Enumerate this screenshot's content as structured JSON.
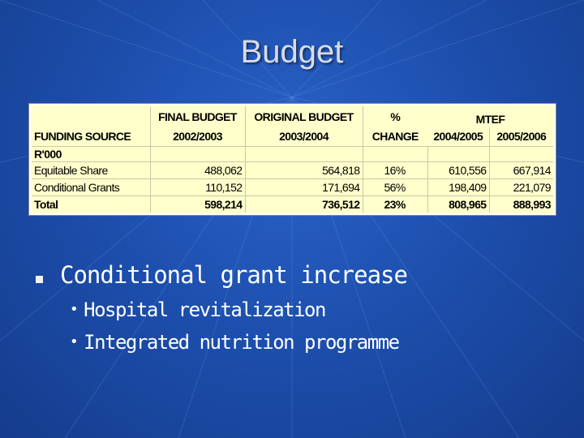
{
  "slide": {
    "title": "Budget",
    "colors": {
      "background": "#1d4fae",
      "table_bg": "#ffffcc",
      "text": "#ffffff"
    }
  },
  "table": {
    "header_row1": {
      "final_budget": "FINAL BUDGET",
      "original_budget": "ORIGINAL BUDGET",
      "percent": "%",
      "mtef": "MTEF"
    },
    "header_row2": {
      "funding_source": "FUNDING SOURCE",
      "y2002": "2002/2003",
      "y2003": "2003/2004",
      "change": "CHANGE",
      "y2004": "2004/2005",
      "y2005": "2005/2006"
    },
    "unit_label": "R'000",
    "rows": [
      {
        "source": "Equitable Share",
        "final": "488,062",
        "original": "564,818",
        "change": "16%",
        "y2004": "610,556",
        "y2005": "667,914"
      },
      {
        "source": "Conditional Grants",
        "final": "110,152",
        "original": "171,694",
        "change": "56%",
        "y2004": "198,409",
        "y2005": "221,079"
      },
      {
        "source": "Total",
        "final": "598,214",
        "original": "736,512",
        "change": "23%",
        "y2004": "808,965",
        "y2005": "888,993"
      }
    ]
  },
  "bullets": {
    "main": "Conditional grant increase",
    "sub": [
      "Hospital revitalization",
      "Integrated nutrition programme"
    ]
  }
}
